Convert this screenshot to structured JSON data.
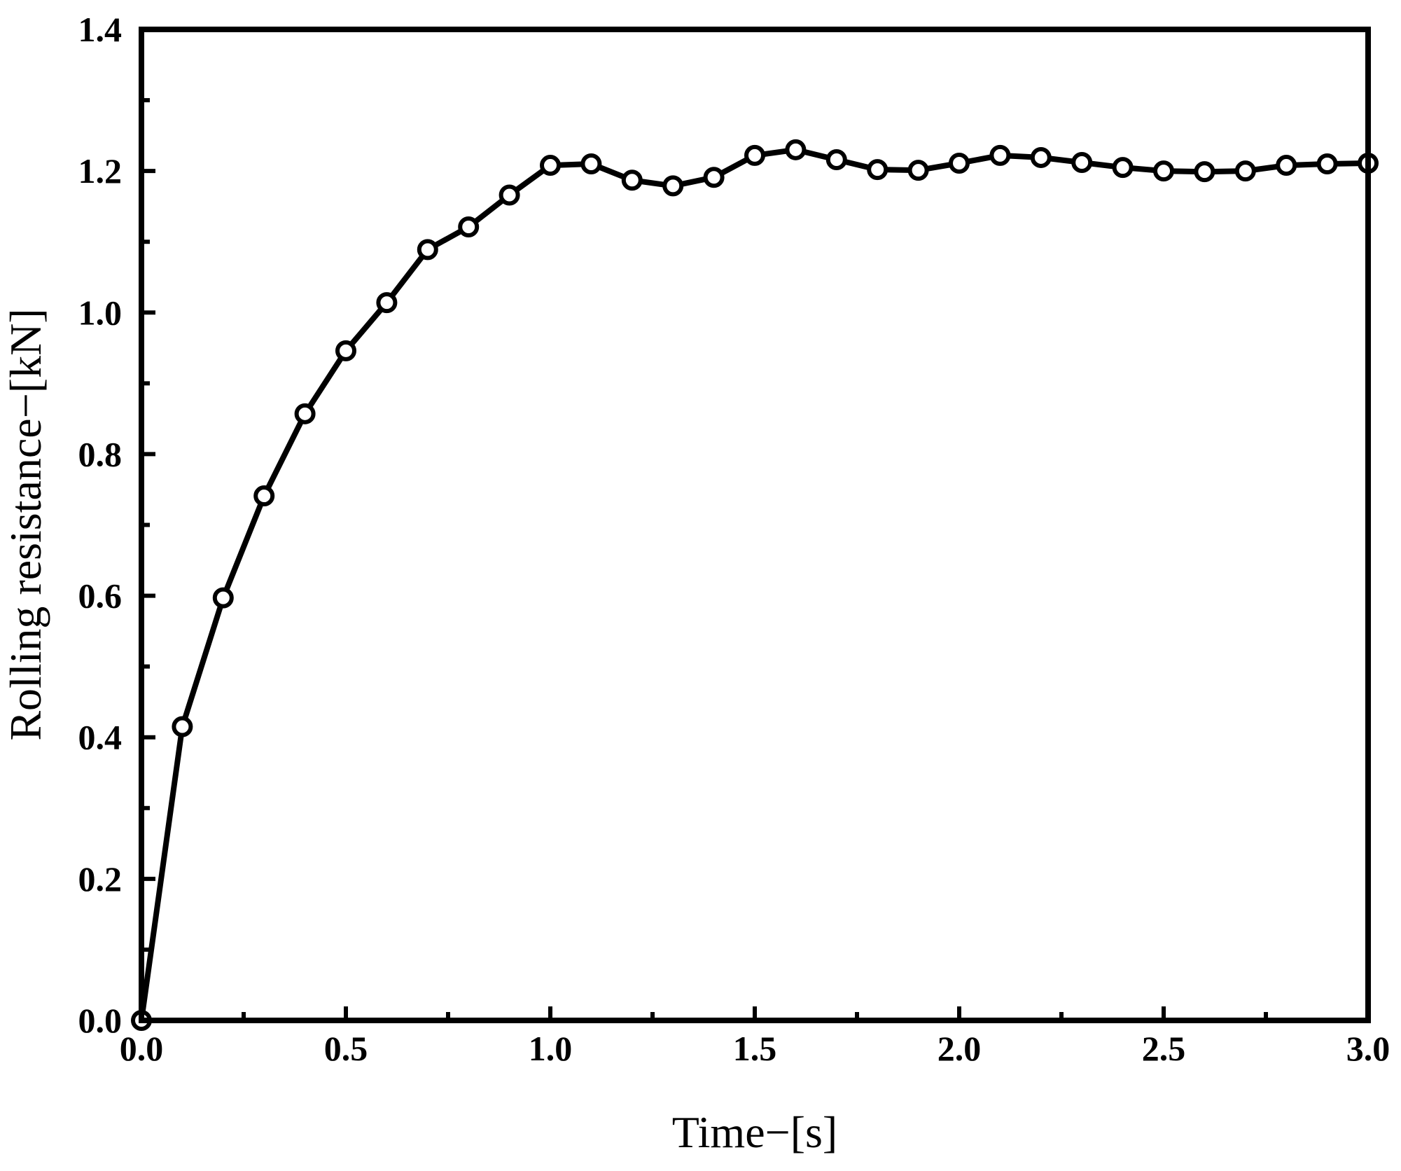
{
  "chart_data": {
    "type": "line",
    "title": "",
    "xlabel": "Time−[s]",
    "ylabel": "Rolling resistance−[kN]",
    "xlim": [
      0.0,
      3.0
    ],
    "ylim": [
      0.0,
      1.4
    ],
    "xticks": [
      "0.0",
      "0.5",
      "1.0",
      "1.5",
      "2.0",
      "2.5",
      "3.0"
    ],
    "yticks": [
      "0.0",
      "0.2",
      "0.4",
      "0.6",
      "0.8",
      "1.0",
      "1.2",
      "1.4"
    ],
    "grid": false,
    "legend": "none",
    "marker": "open-circle",
    "line_color": "#000000",
    "series": [
      {
        "x": [
          0.0,
          0.1,
          0.2,
          0.3,
          0.4,
          0.5,
          0.6,
          0.7,
          0.8,
          0.9,
          1.0,
          1.1,
          1.2,
          1.3,
          1.4,
          1.5,
          1.6,
          1.7,
          1.8,
          1.9,
          2.0,
          2.1,
          2.2,
          2.3,
          2.4,
          2.5,
          2.6,
          2.7,
          2.8,
          2.9,
          3.0
        ],
        "values": [
          0.0,
          0.415,
          0.597,
          0.741,
          0.857,
          0.946,
          1.014,
          1.089,
          1.121,
          1.166,
          1.208,
          1.21,
          1.187,
          1.179,
          1.191,
          1.222,
          1.23,
          1.216,
          1.202,
          1.201,
          1.211,
          1.222,
          1.219,
          1.212,
          1.205,
          1.2,
          1.199,
          1.2,
          1.208,
          1.21,
          1.211
        ]
      }
    ]
  }
}
